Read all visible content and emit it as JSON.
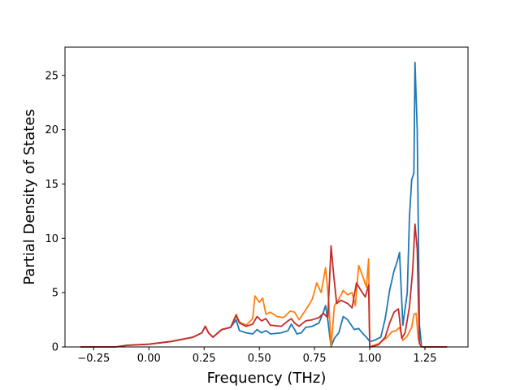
{
  "chart_data": {
    "type": "line",
    "title": "",
    "xlabel": "Frequency (THz)",
    "ylabel": "Partial Density of States",
    "xlim": [
      -0.38,
      1.445
    ],
    "ylim": [
      0,
      27.6
    ],
    "xticks": [
      -0.25,
      0.0,
      0.25,
      0.5,
      0.75,
      1.0,
      1.25
    ],
    "xtick_labels": [
      "−0.25",
      "0.00",
      "0.25",
      "0.50",
      "0.75",
      "1.00",
      "1.25"
    ],
    "yticks": [
      0,
      5,
      10,
      15,
      20,
      25
    ],
    "ytick_labels": [
      "0",
      "5",
      "10",
      "15",
      "20",
      "25"
    ],
    "grid": false,
    "legend": "none",
    "series": [
      {
        "color": "#1f77b4",
        "points": [
          [
            -0.31,
            0
          ],
          [
            -0.15,
            0
          ],
          [
            -0.1,
            0.15
          ],
          [
            0,
            0.25
          ],
          [
            0.1,
            0.5
          ],
          [
            0.2,
            0.9
          ],
          [
            0.24,
            1.3
          ],
          [
            0.255,
            1.9
          ],
          [
            0.27,
            1.3
          ],
          [
            0.29,
            0.9
          ],
          [
            0.33,
            1.6
          ],
          [
            0.37,
            1.8
          ],
          [
            0.395,
            2.5
          ],
          [
            0.41,
            1.5
          ],
          [
            0.44,
            1.3
          ],
          [
            0.47,
            1.2
          ],
          [
            0.49,
            1.6
          ],
          [
            0.51,
            1.3
          ],
          [
            0.53,
            1.5
          ],
          [
            0.55,
            1.2
          ],
          [
            0.6,
            1.3
          ],
          [
            0.63,
            1.5
          ],
          [
            0.645,
            2.1
          ],
          [
            0.66,
            1.6
          ],
          [
            0.67,
            1.2
          ],
          [
            0.69,
            1.3
          ],
          [
            0.71,
            1.8
          ],
          [
            0.74,
            1.9
          ],
          [
            0.77,
            2.2
          ],
          [
            0.79,
            3.2
          ],
          [
            0.8,
            3.8
          ],
          [
            0.81,
            2.5
          ],
          [
            0.825,
            0
          ],
          [
            0.84,
            0.8
          ],
          [
            0.86,
            1.3
          ],
          [
            0.88,
            2.8
          ],
          [
            0.9,
            2.5
          ],
          [
            0.93,
            1.6
          ],
          [
            0.95,
            1.7
          ],
          [
            0.97,
            1.2
          ],
          [
            0.985,
            0.9
          ],
          [
            1.0,
            0.5
          ],
          [
            1.02,
            0.6
          ],
          [
            1.05,
            0.9
          ],
          [
            1.07,
            2.6
          ],
          [
            1.09,
            5.2
          ],
          [
            1.11,
            7.0
          ],
          [
            1.125,
            7.9
          ],
          [
            1.135,
            8.7
          ],
          [
            1.15,
            2.0
          ],
          [
            1.17,
            5.0
          ],
          [
            1.18,
            12
          ],
          [
            1.19,
            15.4
          ],
          [
            1.2,
            16
          ],
          [
            1.205,
            26.2
          ],
          [
            1.215,
            20
          ],
          [
            1.225,
            2
          ],
          [
            1.235,
            0
          ],
          [
            1.35,
            0
          ]
        ]
      },
      {
        "color": "#ff7f0e",
        "points": [
          [
            -0.31,
            0
          ],
          [
            -0.15,
            0
          ],
          [
            -0.1,
            0.15
          ],
          [
            0,
            0.25
          ],
          [
            0.1,
            0.5
          ],
          [
            0.2,
            0.9
          ],
          [
            0.24,
            1.3
          ],
          [
            0.255,
            1.9
          ],
          [
            0.27,
            1.3
          ],
          [
            0.29,
            0.9
          ],
          [
            0.33,
            1.6
          ],
          [
            0.37,
            1.8
          ],
          [
            0.395,
            3.0
          ],
          [
            0.41,
            2.3
          ],
          [
            0.44,
            2.0
          ],
          [
            0.47,
            2.6
          ],
          [
            0.48,
            4.7
          ],
          [
            0.5,
            4.1
          ],
          [
            0.515,
            4.5
          ],
          [
            0.53,
            3.0
          ],
          [
            0.55,
            3.2
          ],
          [
            0.58,
            2.8
          ],
          [
            0.61,
            2.7
          ],
          [
            0.64,
            3.3
          ],
          [
            0.66,
            3.2
          ],
          [
            0.68,
            2.5
          ],
          [
            0.71,
            3.4
          ],
          [
            0.74,
            4.4
          ],
          [
            0.76,
            5.9
          ],
          [
            0.78,
            5.0
          ],
          [
            0.8,
            7.3
          ],
          [
            0.815,
            4.0
          ],
          [
            0.825,
            0
          ],
          [
            0.84,
            3.8
          ],
          [
            0.86,
            4.4
          ],
          [
            0.88,
            5.2
          ],
          [
            0.9,
            4.8
          ],
          [
            0.92,
            5.0
          ],
          [
            0.935,
            3.8
          ],
          [
            0.95,
            7.5
          ],
          [
            0.97,
            6.4
          ],
          [
            0.985,
            5.5
          ],
          [
            0.995,
            8.1
          ],
          [
            1.0,
            0
          ],
          [
            1.04,
            0.3
          ],
          [
            1.08,
            0.9
          ],
          [
            1.1,
            1.4
          ],
          [
            1.12,
            1.5
          ],
          [
            1.135,
            1.8
          ],
          [
            1.15,
            0.6
          ],
          [
            1.17,
            1.0
          ],
          [
            1.19,
            1.8
          ],
          [
            1.2,
            3.0
          ],
          [
            1.21,
            3.1
          ],
          [
            1.22,
            0.7
          ],
          [
            1.235,
            0
          ],
          [
            1.35,
            0
          ]
        ]
      },
      {
        "color": "#c42a2a",
        "points": [
          [
            -0.31,
            0
          ],
          [
            -0.15,
            0
          ],
          [
            -0.1,
            0.15
          ],
          [
            0,
            0.25
          ],
          [
            0.1,
            0.5
          ],
          [
            0.2,
            0.9
          ],
          [
            0.24,
            1.3
          ],
          [
            0.255,
            1.9
          ],
          [
            0.27,
            1.3
          ],
          [
            0.29,
            0.9
          ],
          [
            0.33,
            1.6
          ],
          [
            0.37,
            1.8
          ],
          [
            0.395,
            2.9
          ],
          [
            0.41,
            2.2
          ],
          [
            0.44,
            1.9
          ],
          [
            0.47,
            2.1
          ],
          [
            0.49,
            2.8
          ],
          [
            0.51,
            2.4
          ],
          [
            0.53,
            2.6
          ],
          [
            0.55,
            2.0
          ],
          [
            0.6,
            1.9
          ],
          [
            0.63,
            2.4
          ],
          [
            0.645,
            2.6
          ],
          [
            0.66,
            2.2
          ],
          [
            0.68,
            1.9
          ],
          [
            0.71,
            2.4
          ],
          [
            0.74,
            2.5
          ],
          [
            0.77,
            2.7
          ],
          [
            0.79,
            3.1
          ],
          [
            0.81,
            2.7
          ],
          [
            0.825,
            9.3
          ],
          [
            0.835,
            7.0
          ],
          [
            0.85,
            4.0
          ],
          [
            0.87,
            4.3
          ],
          [
            0.9,
            4.0
          ],
          [
            0.92,
            3.6
          ],
          [
            0.94,
            5.9
          ],
          [
            0.96,
            5.2
          ],
          [
            0.98,
            4.6
          ],
          [
            0.995,
            5.7
          ],
          [
            1.0,
            0
          ],
          [
            1.04,
            0.2
          ],
          [
            1.07,
            0.9
          ],
          [
            1.09,
            2.2
          ],
          [
            1.11,
            3.2
          ],
          [
            1.13,
            3.5
          ],
          [
            1.145,
            0.8
          ],
          [
            1.16,
            1.3
          ],
          [
            1.18,
            3.7
          ],
          [
            1.195,
            7.2
          ],
          [
            1.205,
            11.3
          ],
          [
            1.215,
            9.0
          ],
          [
            1.225,
            0.3
          ],
          [
            1.235,
            0
          ],
          [
            1.35,
            0
          ]
        ]
      }
    ]
  }
}
